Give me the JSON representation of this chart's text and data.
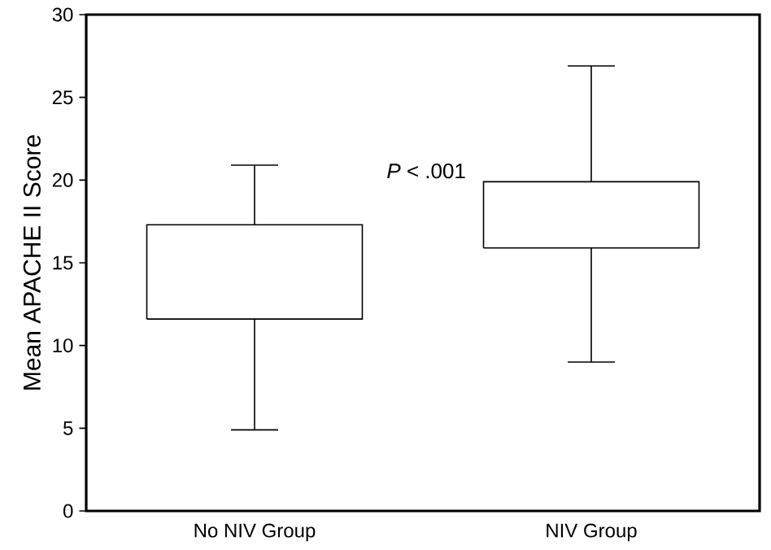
{
  "chart_data": {
    "type": "box",
    "ylabel": "Mean APACHE II Score",
    "categories": [
      "No NIV Group",
      "NIV Group"
    ],
    "boxes": [
      {
        "low": 4.9,
        "q1": 11.6,
        "q3": 17.3,
        "high": 20.9
      },
      {
        "low": 9.0,
        "q1": 15.9,
        "q3": 19.9,
        "high": 26.9
      }
    ],
    "ylim": [
      0,
      30
    ],
    "yticks": [
      0,
      5,
      10,
      15,
      20,
      25,
      30
    ],
    "annotations": [
      "*P* < .001"
    ],
    "grid": false
  }
}
